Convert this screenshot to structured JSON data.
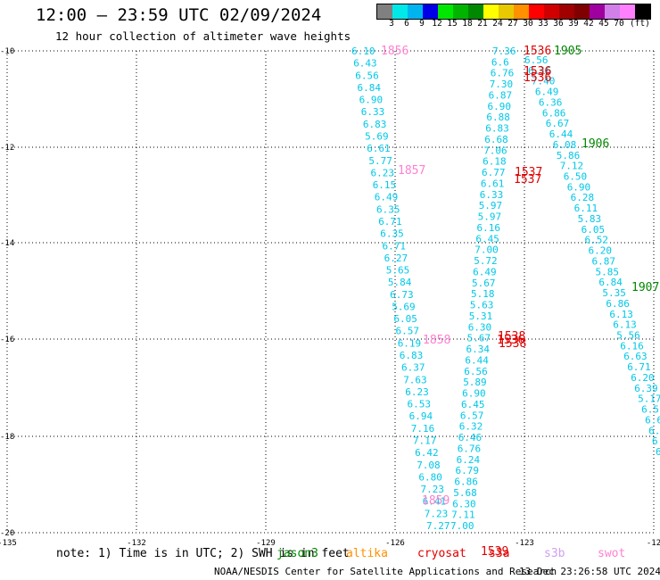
{
  "header": {
    "title": "12:00 – 23:59 UTC 02/09/2024",
    "subtitle": "12 hour collection of altimeter wave heights"
  },
  "colorbar": {
    "colors": [
      "#808080",
      "#00e8e8",
      "#00b4f0",
      "#0000e8",
      "#00e800",
      "#00b400",
      "#008800",
      "#ffff00",
      "#e8c800",
      "#ff9000",
      "#ff0000",
      "#d00000",
      "#a00000",
      "#800000",
      "#a000a0",
      "#d080e8",
      "#ff80ff",
      "#000000"
    ],
    "labels": [
      "3",
      "6",
      "9",
      "12",
      "15",
      "18",
      "21",
      "24",
      "27",
      "30",
      "33",
      "36",
      "39",
      "42",
      "45",
      "70",
      "(ft)"
    ]
  },
  "map": {
    "lon_ticks": [
      "-135",
      "-132",
      "-129",
      "-126",
      "-123",
      "-12"
    ],
    "lat_ticks": [
      "-10",
      "-12",
      "-14",
      "-16",
      "-18",
      "-20"
    ]
  },
  "tracks": [
    {
      "id": "t1",
      "color": "#00c8e8",
      "values": [
        "6.10",
        "6.43",
        "6.56",
        "6.84",
        "6.90",
        "6.33",
        "6.83",
        "5.69",
        "6.61",
        "5.77",
        "6.23",
        "6.15",
        "6.49",
        "6.35",
        "6.71",
        "6.35",
        "6.71",
        "6.27",
        "5.65",
        "5.84",
        "6.73",
        "5.69",
        "6.05",
        "6.57",
        "6.19",
        "6.83",
        "6.37",
        "7.63",
        "6.23",
        "6.53",
        "6.94",
        "7.16",
        "7.17",
        "6.42",
        "7.08",
        "6.80",
        "7.23",
        "6.41",
        "7.23",
        "7.27"
      ]
    },
    {
      "id": "t2",
      "color": "#00c8e8",
      "values": [
        "7.36",
        "6.6",
        "6.76",
        "7.30",
        "6.87",
        "6.90",
        "6.88",
        "6.83",
        "6.68",
        "7.06",
        "6.18",
        "6.77",
        "6.61",
        "6.33",
        "5.97",
        "5.97",
        "6.16",
        "6.45",
        "7.00",
        "5.72",
        "6.49",
        "5.67",
        "5.18",
        "5.63",
        "5.31",
        "6.30",
        "5.67",
        "6.34",
        "6.44",
        "6.56",
        "5.89",
        "6.90",
        "6.45",
        "6.57",
        "6.32",
        "6.46",
        "6.76",
        "6.24",
        "6.79",
        "6.86",
        "5.68",
        "6.30",
        "7.11",
        "7.00"
      ]
    },
    {
      "id": "t3",
      "color": "#00c8e8",
      "values": [
        "6.56",
        "6.16",
        "7.40",
        "6.49",
        "6.36",
        "6.86",
        "6.67",
        "6.44",
        "6.08",
        "5.86",
        "7.12",
        "6.50",
        "6.90",
        "6.28",
        "6.11",
        "5.83",
        "6.05",
        "6.52",
        "6.20",
        "6.87",
        "5.85",
        "6.84",
        "5.35",
        "6.86",
        "6.13",
        "6.13",
        "5.56",
        "6.16",
        "6.63",
        "6.71",
        "6.20",
        "6.39",
        "5.17",
        "6.51",
        "6.6",
        "6.4",
        "6.",
        "6."
      ]
    }
  ],
  "labels": [
    {
      "text": "1856",
      "color": "#ff80d0"
    },
    {
      "text": "1857",
      "color": "#ff80d0"
    },
    {
      "text": "1858",
      "color": "#ff80d0"
    },
    {
      "text": "1859",
      "color": "#ff80d0"
    },
    {
      "text": "1905",
      "color": "#008800"
    },
    {
      "text": "1906",
      "color": "#008800"
    },
    {
      "text": "1907",
      "color": "#008800"
    },
    {
      "text": "1536",
      "color": "#e00000"
    },
    {
      "text": "1536",
      "color": "#e00000"
    },
    {
      "text": "1536",
      "color": "#e00000"
    },
    {
      "text": "1536",
      "color": "#e00000"
    },
    {
      "text": "1537",
      "color": "#e00000"
    },
    {
      "text": "1537",
      "color": "#e00000"
    },
    {
      "text": "1538",
      "color": "#e00000"
    },
    {
      "text": "1538",
      "color": "#e00000"
    },
    {
      "text": "1539",
      "color": "#e00000"
    }
  ],
  "footer": {
    "note": "note: 1) Time is in UTC; 2) SWH is in feet",
    "satellites": [
      {
        "name": "jason3",
        "color": "#008800"
      },
      {
        "name": "altika",
        "color": "#ff9000"
      },
      {
        "name": "cryosat",
        "color": "#e00000"
      },
      {
        "name": "s3a",
        "color": "#e00000"
      },
      {
        "name": "s3b",
        "color": "#d0a0f0"
      },
      {
        "name": "swot",
        "color": "#ff80d0"
      }
    ],
    "credit": "NOAA/NESDIS Center for Satellite Applications and Research",
    "timestamp": "13 Dec 23:26:58 UTC 2024"
  }
}
